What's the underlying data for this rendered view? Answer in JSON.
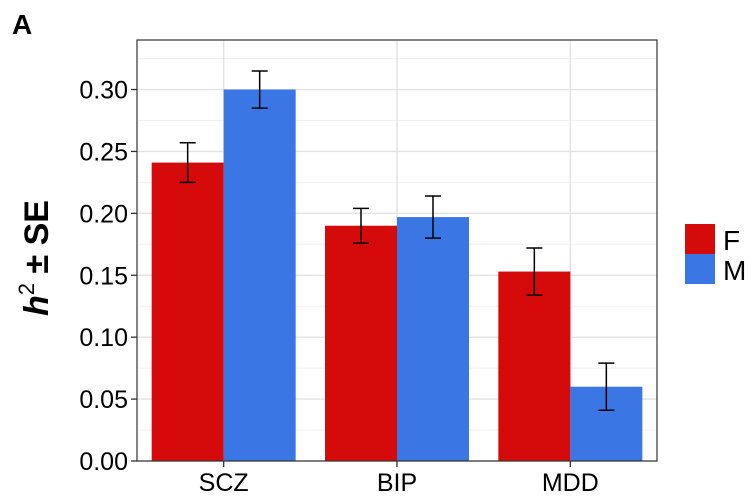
{
  "panel_label": "A",
  "chart_data": {
    "type": "bar",
    "categories": [
      "SCZ",
      "BIP",
      "MDD"
    ],
    "series": [
      {
        "name": "F",
        "color": "#D50B0B",
        "values": [
          0.241,
          0.19,
          0.153
        ],
        "errors": [
          0.016,
          0.014,
          0.019
        ]
      },
      {
        "name": "M",
        "color": "#3A77E5",
        "values": [
          0.3,
          0.197,
          0.06
        ],
        "errors": [
          0.015,
          0.017,
          0.019
        ]
      }
    ],
    "ylabel": {
      "main": "h",
      "superscript": "2",
      "suffix": " ± SE"
    },
    "ylim": [
      0.0,
      0.34
    ],
    "yticks": [
      "0.00",
      "0.05",
      "0.10",
      "0.15",
      "0.20",
      "0.25",
      "0.30"
    ],
    "ytick_values": [
      0.0,
      0.05,
      0.1,
      0.15,
      0.2,
      0.25,
      0.3
    ],
    "grid": true,
    "legend_position": "right"
  }
}
